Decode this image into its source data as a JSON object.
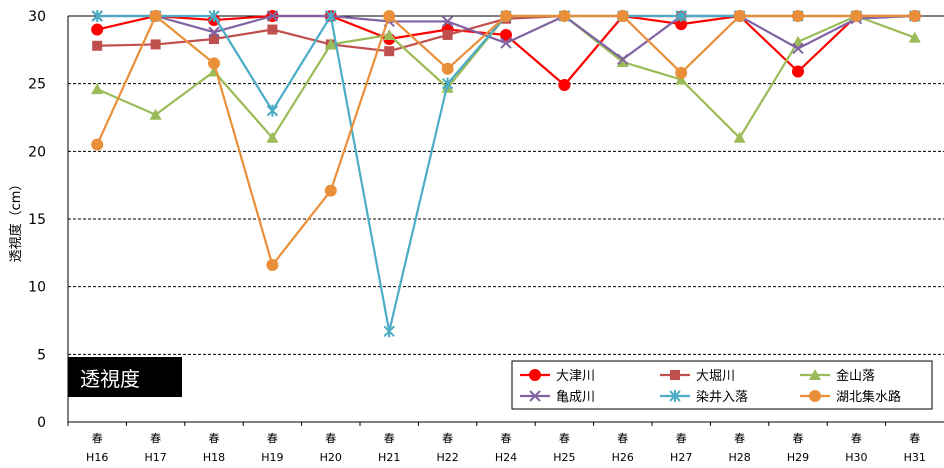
{
  "chart_data": {
    "type": "line",
    "ylabel": "透視度（cm）",
    "title_box": "透視度",
    "ylim": [
      0,
      30
    ],
    "yticks": [
      0,
      5,
      10,
      15,
      20,
      25,
      30
    ],
    "grid": "horizontal dashed",
    "legend_position": "bottom-right",
    "categories": [
      {
        "line1": "春",
        "line2": "H16"
      },
      {
        "line1": "春",
        "line2": "H17"
      },
      {
        "line1": "春",
        "line2": "H18"
      },
      {
        "line1": "春",
        "line2": "H19"
      },
      {
        "line1": "春",
        "line2": "H20"
      },
      {
        "line1": "春",
        "line2": "H21"
      },
      {
        "line1": "春",
        "line2": "H22"
      },
      {
        "line1": "春",
        "line2": "H24"
      },
      {
        "line1": "春",
        "line2": "H25"
      },
      {
        "line1": "春",
        "line2": "H26"
      },
      {
        "line1": "春",
        "line2": "H27"
      },
      {
        "line1": "春",
        "line2": "H28"
      },
      {
        "line1": "春",
        "line2": "H29"
      },
      {
        "line1": "春",
        "line2": "H30"
      },
      {
        "line1": "春",
        "line2": "H31"
      }
    ],
    "series": [
      {
        "name": "大津川",
        "color": "#ff0000",
        "marker": "circle",
        "values": [
          29,
          30,
          29.7,
          30,
          30,
          28.3,
          29,
          28.6,
          24.9,
          30,
          29.4,
          30,
          25.9,
          30,
          30
        ]
      },
      {
        "name": "大堀川",
        "color": "#c0504d",
        "marker": "square",
        "values": [
          27.8,
          27.9,
          28.3,
          29,
          27.9,
          27.4,
          28.6,
          29.8,
          30,
          30,
          30,
          30,
          30,
          30,
          30
        ]
      },
      {
        "name": "金山落",
        "color": "#9bbb59",
        "marker": "triangle",
        "values": [
          24.6,
          22.7,
          25.9,
          21,
          27.9,
          28.6,
          24.7,
          30,
          30,
          26.6,
          25.3,
          21,
          28.1,
          30,
          28.4
        ]
      },
      {
        "name": "亀成川",
        "color": "#8064a2",
        "marker": "x",
        "values": [
          30,
          30,
          28.8,
          30,
          30,
          29.6,
          29.6,
          28,
          30,
          26.8,
          30,
          30,
          27.6,
          29.8,
          30
        ]
      },
      {
        "name": "染井入落",
        "color": "#4bacc6",
        "marker": "star",
        "values": [
          30,
          30,
          30,
          23,
          30,
          6.7,
          25,
          30,
          30,
          30,
          30,
          30,
          30,
          30,
          30
        ]
      },
      {
        "name": "湖北集水路",
        "color": "#e98f3a",
        "marker": "circle",
        "values": [
          20.5,
          30,
          26.5,
          11.6,
          17.1,
          30,
          26.1,
          30,
          30,
          30,
          25.8,
          30,
          30,
          30,
          30
        ]
      }
    ]
  }
}
